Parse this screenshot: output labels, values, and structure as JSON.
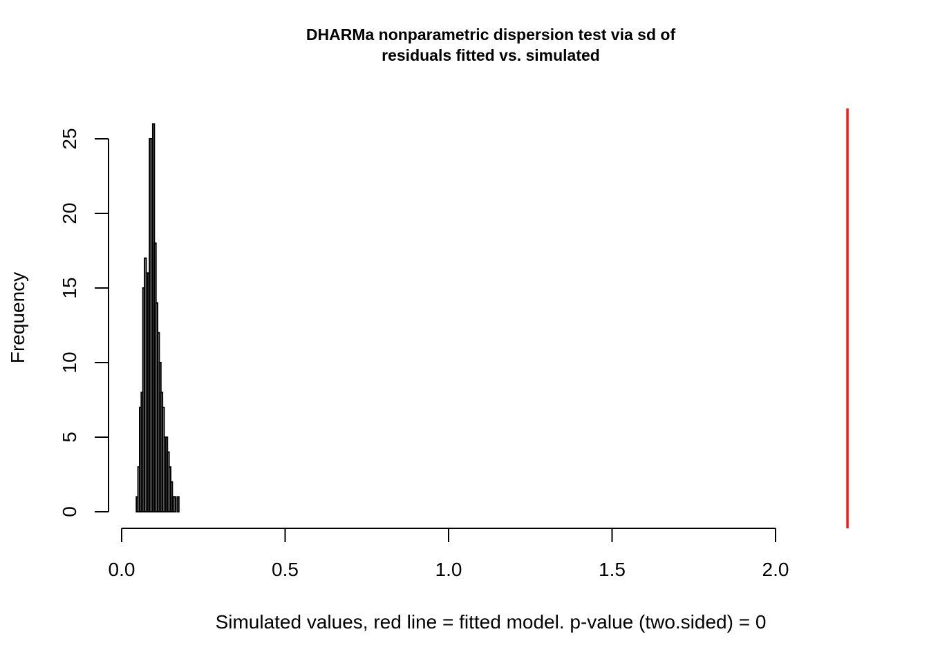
{
  "chart_data": {
    "type": "bar",
    "title_lines": [
      "DHARMa nonparametric dispersion test via sd of",
      "residuals fitted vs. simulated"
    ],
    "xlabel": "Simulated values, red line = fitted model. p-value (two.sided) = 0",
    "ylabel": "Frequency",
    "xlim": [
      0,
      2.0
    ],
    "ylim": [
      0,
      25
    ],
    "x_ticks": [
      "0.0",
      "0.5",
      "1.0",
      "1.5",
      "2.0"
    ],
    "y_ticks": [
      "0",
      "5",
      "10",
      "15",
      "20",
      "25"
    ],
    "bin_width": 0.005,
    "bins_start": [
      0.045,
      0.05,
      0.055,
      0.06,
      0.065,
      0.07,
      0.075,
      0.08,
      0.085,
      0.09,
      0.095,
      0.1,
      0.105,
      0.11,
      0.115,
      0.12,
      0.125,
      0.13,
      0.135,
      0.14,
      0.145,
      0.15,
      0.155,
      0.16,
      0.165,
      0.17,
      0.175,
      0.18,
      0.185
    ],
    "counts": [
      1,
      3,
      7,
      8,
      15,
      17,
      16,
      16,
      25,
      25,
      26,
      18,
      14,
      12,
      10,
      8,
      7,
      5,
      5,
      4,
      3,
      2,
      1,
      1,
      0,
      1,
      0,
      0,
      0
    ],
    "observed_line_x": 2.22,
    "bar_color": "#ffffff",
    "bar_edge_color": "#000000",
    "observed_line_color": "#e8201a",
    "grid": false,
    "legend": "none"
  }
}
